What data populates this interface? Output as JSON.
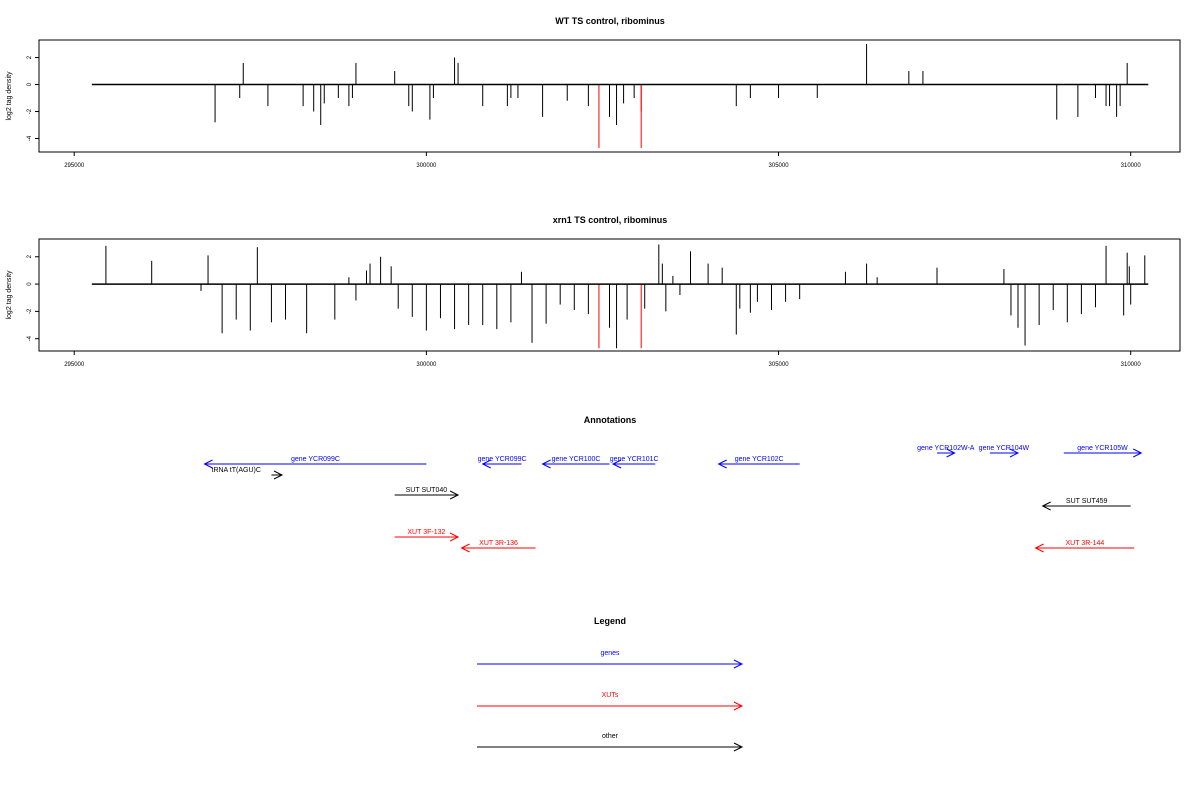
{
  "colors": {
    "genes": "#0000ff",
    "xuts": "#ff0000",
    "other": "#000000",
    "highlight": "#ff0000"
  },
  "chart_data": [
    {
      "type": "bar",
      "title": "WT TS control, ribominus",
      "ylabel": "log2 tag density",
      "xlim": [
        294500,
        310700
      ],
      "ylim": [
        -5,
        3.3
      ],
      "xticks": [
        "295000",
        "300000",
        "305000",
        "310000"
      ],
      "yticks": [
        "-4",
        "-2",
        "0",
        "2"
      ],
      "baseline": [
        295250,
        310250
      ],
      "bars": [
        [
          297000,
          -2.8
        ],
        [
          297350,
          -1.0
        ],
        [
          297400,
          1.6
        ],
        [
          297750,
          -1.6
        ],
        [
          298250,
          -1.6
        ],
        [
          298400,
          -2.0
        ],
        [
          298500,
          -3.0
        ],
        [
          298550,
          -1.4
        ],
        [
          298750,
          -1.0
        ],
        [
          298900,
          -1.6
        ],
        [
          298950,
          -1.0
        ],
        [
          299000,
          1.6
        ],
        [
          299550,
          1.0
        ],
        [
          299750,
          -1.6
        ],
        [
          299800,
          -2.0
        ],
        [
          300050,
          -2.6
        ],
        [
          300100,
          -1.0
        ],
        [
          300400,
          2.0
        ],
        [
          300450,
          1.6
        ],
        [
          300800,
          -1.6
        ],
        [
          301150,
          -1.6
        ],
        [
          301200,
          -1.0
        ],
        [
          301300,
          -1.0
        ],
        [
          301650,
          -2.4
        ],
        [
          302000,
          -1.2
        ],
        [
          302300,
          -1.6
        ],
        [
          302600,
          -2.4
        ],
        [
          302700,
          -3.0
        ],
        [
          302800,
          -1.4
        ],
        [
          302950,
          -1.0
        ],
        [
          304400,
          -1.6
        ],
        [
          304600,
          -1.0
        ],
        [
          305000,
          -1.0
        ],
        [
          305550,
          -1.0
        ],
        [
          306250,
          3.0
        ],
        [
          306850,
          1.0
        ],
        [
          307050,
          1.0
        ],
        [
          308950,
          -2.6
        ],
        [
          309250,
          -2.4
        ],
        [
          309500,
          -1.0
        ],
        [
          309650,
          -1.6
        ],
        [
          309700,
          -1.6
        ],
        [
          309800,
          -2.4
        ],
        [
          309850,
          -1.6
        ],
        [
          309950,
          1.6
        ]
      ],
      "highlight_bars": [
        [
          302450,
          -4.7
        ],
        [
          303050,
          -4.7
        ],
        [
          303050,
          -2.0
        ]
      ]
    },
    {
      "type": "bar",
      "title": "xrn1 TS control, ribominus",
      "ylabel": "log2 tag density",
      "xlim": [
        294500,
        310700
      ],
      "ylim": [
        -4.9,
        3.3
      ],
      "xticks": [
        "295000",
        "300000",
        "305000",
        "310000"
      ],
      "yticks": [
        "-4",
        "-2",
        "0",
        "2"
      ],
      "baseline": [
        295250,
        310250
      ],
      "bars": [
        [
          295450,
          2.8
        ],
        [
          296100,
          1.7
        ],
        [
          296800,
          -0.5
        ],
        [
          296900,
          2.1
        ],
        [
          297100,
          -3.6
        ],
        [
          297300,
          -2.6
        ],
        [
          297500,
          -3.4
        ],
        [
          297600,
          2.7
        ],
        [
          297800,
          -2.8
        ],
        [
          298000,
          -2.6
        ],
        [
          298300,
          -3.6
        ],
        [
          298700,
          -2.6
        ],
        [
          298900,
          0.5
        ],
        [
          299000,
          -1.2
        ],
        [
          299150,
          1.0
        ],
        [
          299200,
          1.5
        ],
        [
          299350,
          2.0
        ],
        [
          299500,
          1.3
        ],
        [
          299600,
          -1.8
        ],
        [
          299800,
          -2.4
        ],
        [
          300000,
          -3.4
        ],
        [
          300200,
          -2.5
        ],
        [
          300400,
          -3.3
        ],
        [
          300600,
          -3.0
        ],
        [
          300800,
          -3.0
        ],
        [
          301000,
          -3.3
        ],
        [
          301200,
          -2.8
        ],
        [
          301350,
          0.9
        ],
        [
          301500,
          -4.3
        ],
        [
          301700,
          -2.9
        ],
        [
          301900,
          -1.5
        ],
        [
          302100,
          -1.9
        ],
        [
          302300,
          -2.2
        ],
        [
          302600,
          -3.2
        ],
        [
          302700,
          -4.7
        ],
        [
          302850,
          -2.6
        ],
        [
          303100,
          -1.8
        ],
        [
          303300,
          2.9
        ],
        [
          303350,
          1.5
        ],
        [
          303400,
          -2.0
        ],
        [
          303500,
          0.6
        ],
        [
          303600,
          -0.8
        ],
        [
          303750,
          2.4
        ],
        [
          304000,
          1.5
        ],
        [
          304200,
          1.2
        ],
        [
          304400,
          -3.7
        ],
        [
          304450,
          -1.8
        ],
        [
          304600,
          -2.1
        ],
        [
          304700,
          -1.3
        ],
        [
          304900,
          -1.9
        ],
        [
          305100,
          -1.3
        ],
        [
          305300,
          -1.1
        ],
        [
          305950,
          0.9
        ],
        [
          306250,
          1.5
        ],
        [
          306400,
          0.5
        ],
        [
          307250,
          1.2
        ],
        [
          308200,
          1.1
        ],
        [
          308300,
          -2.3
        ],
        [
          308400,
          -3.2
        ],
        [
          308500,
          -4.5
        ],
        [
          308700,
          -3.0
        ],
        [
          308900,
          -1.9
        ],
        [
          309100,
          -2.8
        ],
        [
          309300,
          -2.2
        ],
        [
          309500,
          -1.7
        ],
        [
          309650,
          2.8
        ],
        [
          309900,
          -2.3
        ],
        [
          310000,
          -1.5
        ],
        [
          310200,
          2.1
        ],
        [
          309950,
          2.3
        ],
        [
          309980,
          1.3
        ]
      ],
      "highlight_bars": [
        [
          302450,
          -4.7
        ],
        [
          303050,
          -4.7
        ]
      ]
    }
  ],
  "annotations": {
    "title": "Annotations",
    "items": [
      {
        "label": "tRNA tT(AGU)C",
        "type": "other",
        "from": 297800,
        "to": 297950,
        "row": 2,
        "label_at": 297300
      },
      {
        "label": "gene YCR099C",
        "type": "genes",
        "from": 300000,
        "to": 296850,
        "row": 1
      },
      {
        "label": "gene YCR099C",
        "type": "genes",
        "from": 301350,
        "to": 300800,
        "row": 1
      },
      {
        "label": "gene YCR100C",
        "type": "genes",
        "from": 302600,
        "to": 301650,
        "row": 1
      },
      {
        "label": "gene YCR101C",
        "type": "genes",
        "from": 303250,
        "to": 302650,
        "row": 1
      },
      {
        "label": "gene YCR102C",
        "type": "genes",
        "from": 305300,
        "to": 304150,
        "row": 1
      },
      {
        "label": "gene YCR102W-A",
        "type": "genes",
        "from": 307250,
        "to": 307500,
        "row": 0
      },
      {
        "label": "gene YCR104W",
        "type": "genes",
        "from": 308000,
        "to": 308400,
        "row": 0
      },
      {
        "label": "gene YCR105W",
        "type": "genes",
        "from": 309050,
        "to": 310150,
        "row": 0
      },
      {
        "label": "SUT SUT040",
        "type": "other",
        "from": 299550,
        "to": 300450,
        "row": 3
      },
      {
        "label": "SUT SUT459",
        "type": "other",
        "from": 310000,
        "to": 308750,
        "row": 4
      },
      {
        "label": "XUT 3F-132",
        "type": "xuts",
        "from": 299550,
        "to": 300450,
        "row": 5
      },
      {
        "label": "XUT 3R-136",
        "type": "xuts",
        "from": 301550,
        "to": 300500,
        "row": 6
      },
      {
        "label": "XUT 3R-144",
        "type": "xuts",
        "from": 310050,
        "to": 308650,
        "row": 6
      }
    ]
  },
  "legend": {
    "title": "Legend",
    "items": [
      {
        "label": "genes",
        "type": "genes"
      },
      {
        "label": "XUTs",
        "type": "xuts"
      },
      {
        "label": "other",
        "type": "other"
      }
    ]
  }
}
